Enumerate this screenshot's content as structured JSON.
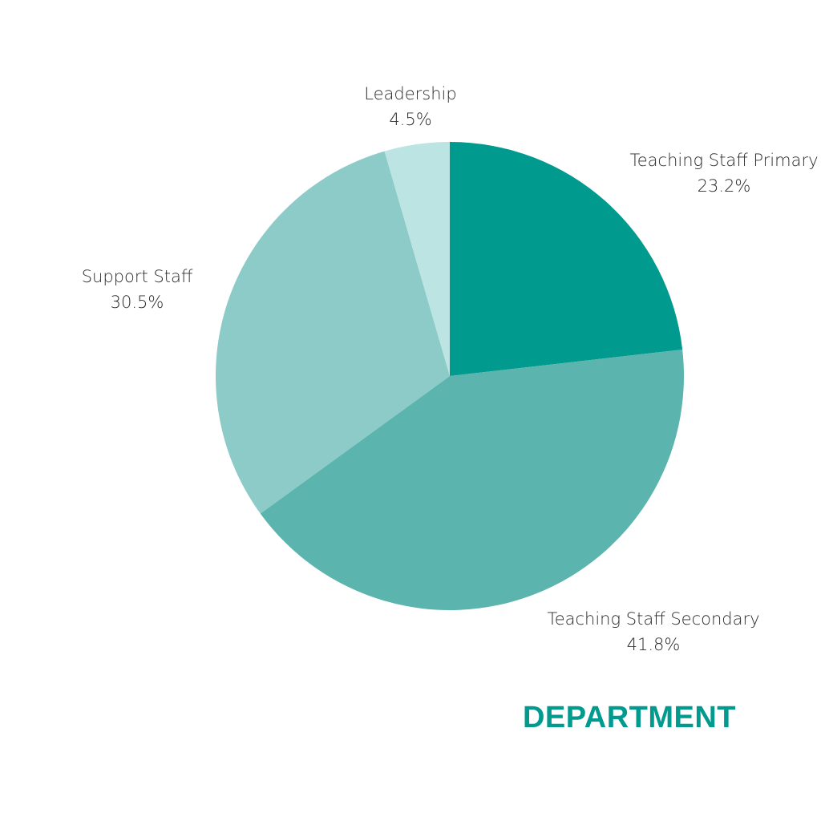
{
  "chart_data": {
    "type": "pie",
    "title": "DEPARTMENT",
    "start_angle_deg": 0,
    "direction": "clockwise",
    "slices": [
      {
        "label": "Teaching Staff Primary",
        "value": 23.2,
        "value_label": "23.2%",
        "color": "#009a8e"
      },
      {
        "label": "Teaching Staff Secondary",
        "value": 41.8,
        "value_label": "41.8%",
        "color": "#5bb4ad"
      },
      {
        "label": "Support Staff",
        "value": 30.5,
        "value_label": "30.5%",
        "color": "#8ccbc7"
      },
      {
        "label": "Leadership",
        "value": 4.5,
        "value_label": "4.5%",
        "color": "#bbe4e2"
      }
    ]
  }
}
